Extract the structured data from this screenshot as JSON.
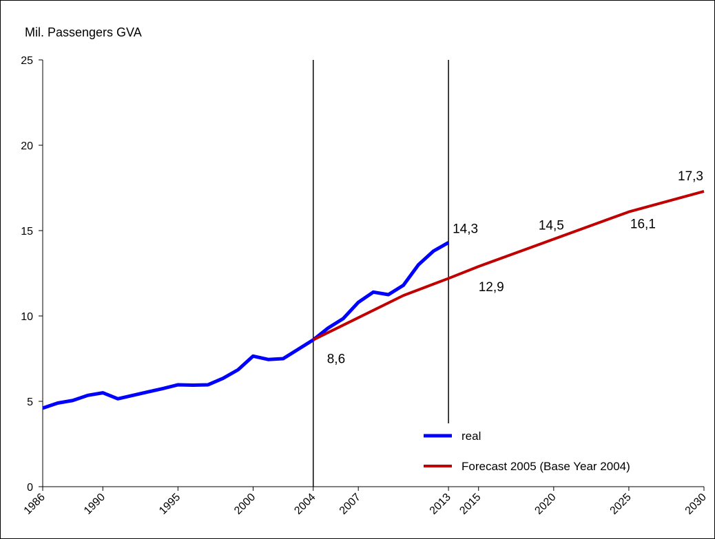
{
  "chart_data": {
    "type": "line",
    "y_label": "Mil. Passengers GVA",
    "xlim": [
      1986,
      2030
    ],
    "xticks": [
      1986,
      1990,
      1995,
      2000,
      2004,
      2007,
      2013,
      2015,
      2020,
      2025,
      2030
    ],
    "ylim": [
      0,
      25
    ],
    "yticks": [
      0,
      5,
      10,
      15,
      20,
      25
    ],
    "grid": false,
    "vlines": [
      2004,
      2013
    ],
    "legend": "lower right",
    "series": [
      {
        "name": "real",
        "color": "#0000ff",
        "x": [
          1986,
          1987,
          1988,
          1989,
          1990,
          1991,
          1992,
          1993,
          1994,
          1995,
          1996,
          1997,
          1998,
          1999,
          2000,
          2001,
          2002,
          2003,
          2004,
          2005,
          2006,
          2007,
          2008,
          2009,
          2010,
          2011,
          2012,
          2013
        ],
        "values": [
          4.6,
          4.9,
          5.05,
          5.35,
          5.5,
          5.15,
          5.35,
          5.55,
          5.75,
          5.97,
          5.95,
          5.97,
          6.35,
          6.85,
          7.65,
          7.45,
          7.5,
          8.05,
          8.6,
          9.3,
          9.85,
          10.8,
          11.4,
          11.25,
          11.8,
          13.0,
          13.8,
          14.3
        ],
        "value_labels": [
          null,
          null,
          null,
          null,
          null,
          null,
          null,
          null,
          null,
          null,
          null,
          null,
          null,
          null,
          null,
          null,
          null,
          null,
          null,
          null,
          null,
          null,
          null,
          null,
          null,
          null,
          null,
          "14,3"
        ]
      },
      {
        "name": "Forecast 2005 (Base Year 2004)",
        "color": "#c00000",
        "x": [
          2004,
          2010,
          2013,
          2015,
          2020,
          2025,
          2030
        ],
        "values": [
          8.6,
          11.2,
          12.2,
          12.9,
          14.5,
          16.1,
          17.3
        ],
        "value_labels": [
          "8,6",
          null,
          null,
          "12,9",
          "14,5",
          "16,1",
          "17,3"
        ]
      }
    ]
  }
}
